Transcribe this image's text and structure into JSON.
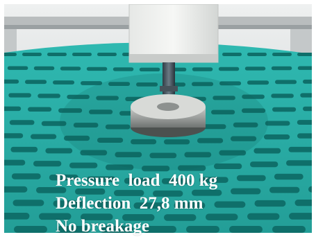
{
  "caption": {
    "lines": [
      "Pressure  load  400 kg",
      "Deflection  27,8 mm",
      "No breakage"
    ]
  },
  "colors": {
    "slat_teal": "#2ab8b0",
    "slat_shadow": "#0f6f6a",
    "caption_text": "#ffffff",
    "background_wall": "#d8dcdc"
  }
}
